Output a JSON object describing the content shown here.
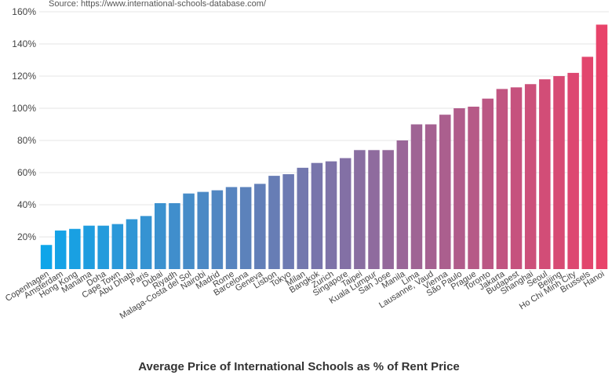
{
  "source": "Source: https://www.international-schools-database.com/",
  "chart_data": {
    "type": "bar",
    "title": "Average Price of International Schools as % of Rent Price",
    "xlabel": "",
    "ylabel": "",
    "ylim": [
      0,
      160
    ],
    "yticks": [
      20,
      40,
      60,
      80,
      100,
      120,
      140,
      160
    ],
    "ytick_labels": [
      "20%",
      "40%",
      "60%",
      "80%",
      "100%",
      "120%",
      "140%",
      "160%"
    ],
    "grid": true,
    "color_start": "#0ea5e9",
    "color_end": "#e8436a",
    "categories": [
      "Copenhagen",
      "Amsterdam",
      "Hong Kong",
      "Manama",
      "Doha",
      "Cape Town",
      "Abu Dhabi",
      "Paris",
      "Dubai",
      "Riyadh",
      "Malaga-Costa del Sol",
      "Nairobi",
      "Madrid",
      "Rome",
      "Barcelona",
      "Geneva",
      "Lisbon",
      "Tokyo",
      "Milan",
      "Bangkok",
      "Zurich",
      "Singapore",
      "Taipei",
      "Kuala Lumpur",
      "San Jose",
      "Manila",
      "Lima",
      "Lausanne, Vaud",
      "Vienna",
      "São Paulo",
      "Prague",
      "Toronto",
      "Jakarta",
      "Budapest",
      "Shanghai",
      "Seoul",
      "Beijing",
      "Ho Chi Minh City",
      "Brussels",
      "Hanoi"
    ],
    "values": [
      15,
      24,
      25,
      27,
      27,
      28,
      31,
      33,
      41,
      41,
      47,
      48,
      49,
      51,
      51,
      53,
      58,
      59,
      63,
      66,
      67,
      69,
      74,
      74,
      74,
      80,
      90,
      90,
      96,
      100,
      101,
      106,
      112,
      113,
      115,
      118,
      120,
      122,
      132,
      152
    ]
  }
}
